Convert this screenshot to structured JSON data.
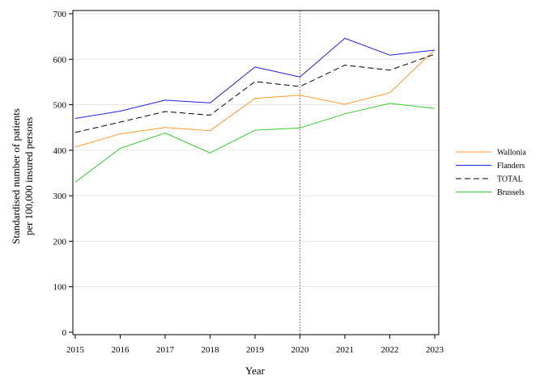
{
  "chart_data": {
    "type": "line",
    "xlabel": "Year",
    "ylabel_line1": "Standardised number of patients",
    "ylabel_line2": "per 100,000 insured persons",
    "x": [
      2015,
      2016,
      2017,
      2018,
      2019,
      2020,
      2021,
      2022,
      2023
    ],
    "x_tick_labels": [
      "2015",
      "2016",
      "2017",
      "2018",
      "2019",
      "2020",
      "2021",
      "2022",
      "2023"
    ],
    "ylim": [
      0,
      700
    ],
    "y_ticks": [
      0,
      100,
      200,
      300,
      400,
      500,
      600,
      700
    ],
    "y_tick_labels": [
      "0",
      "100",
      "200",
      "300",
      "400",
      "500",
      "600",
      "700"
    ],
    "grid": "horizontal",
    "reference_line_x": 2020,
    "legend_position": "right",
    "series": [
      {
        "name": "Wallonia",
        "color": "#ff9a2e",
        "dash": "solid",
        "values": [
          407,
          436,
          450,
          443,
          514,
          521,
          501,
          526,
          621
        ]
      },
      {
        "name": "Flanders",
        "color": "#2020e0",
        "dash": "solid",
        "values": [
          470,
          486,
          510,
          504,
          583,
          561,
          646,
          609,
          620
        ]
      },
      {
        "name": "TOTAL",
        "color": "#000000",
        "dash": "dashed",
        "values": [
          439,
          462,
          485,
          477,
          551,
          540,
          587,
          576,
          611
        ]
      },
      {
        "name": "Brussels",
        "color": "#33cc33",
        "dash": "solid",
        "values": [
          330,
          404,
          438,
          394,
          444,
          449,
          480,
          503,
          492
        ]
      }
    ],
    "colors": {
      "reference_line": "#d04040",
      "grid": "#e6e6e6",
      "axis": "#000000"
    }
  }
}
